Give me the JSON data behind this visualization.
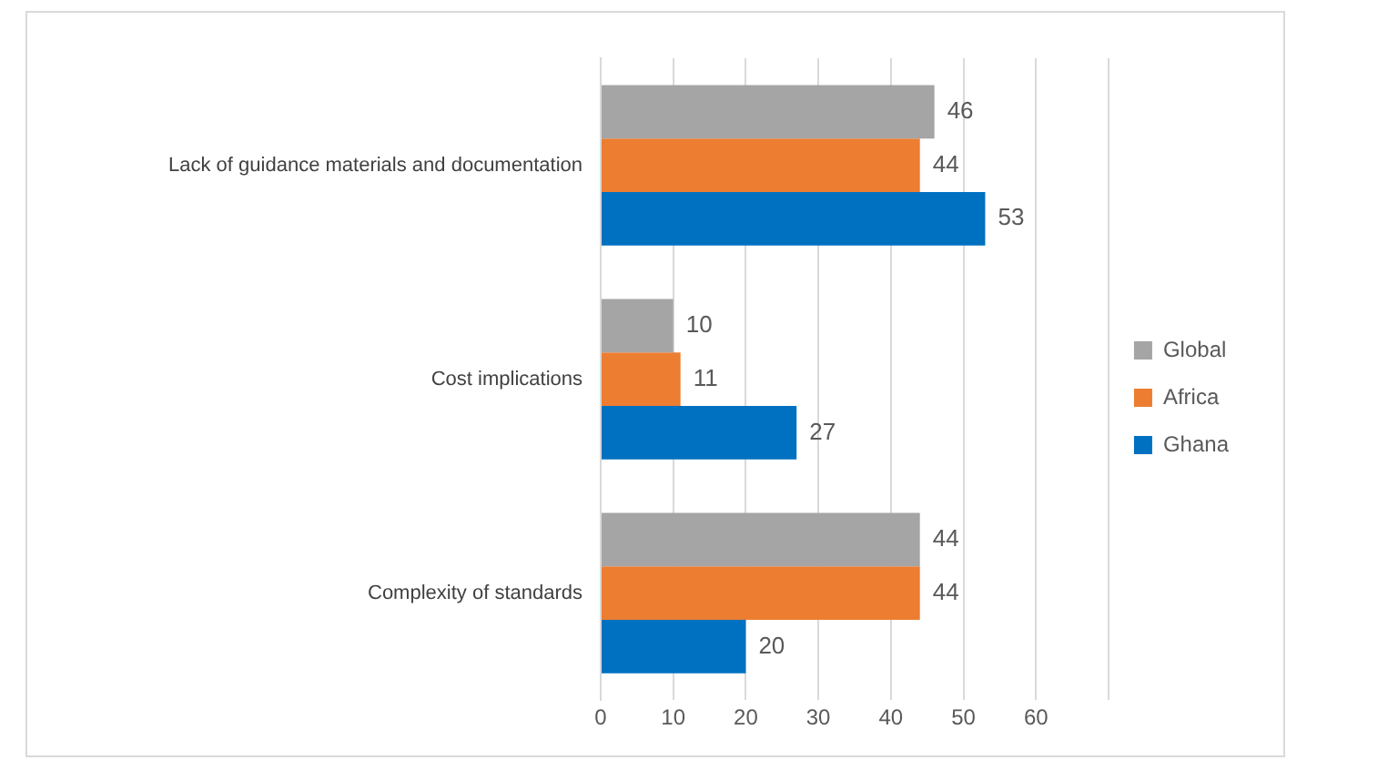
{
  "chart_data": {
    "type": "bar",
    "orientation": "horizontal",
    "categories": [
      "Lack of guidance materials and documentation",
      "Cost implications",
      "Complexity of standards"
    ],
    "series": [
      {
        "name": "Global",
        "color": "#a5a5a5",
        "values": [
          46,
          10,
          44
        ]
      },
      {
        "name": "Africa",
        "color": "#ed7d31",
        "values": [
          44,
          11,
          44
        ]
      },
      {
        "name": "Ghana",
        "color": "#0070c0",
        "values": [
          53,
          27,
          20
        ]
      }
    ],
    "xlim": [
      0,
      70
    ],
    "xticks": [
      0,
      10,
      20,
      30,
      40,
      50,
      60,
      {
        "value": 70,
        "label": null
      }
    ],
    "grid": "x",
    "legend": "right",
    "data_labels": true
  }
}
